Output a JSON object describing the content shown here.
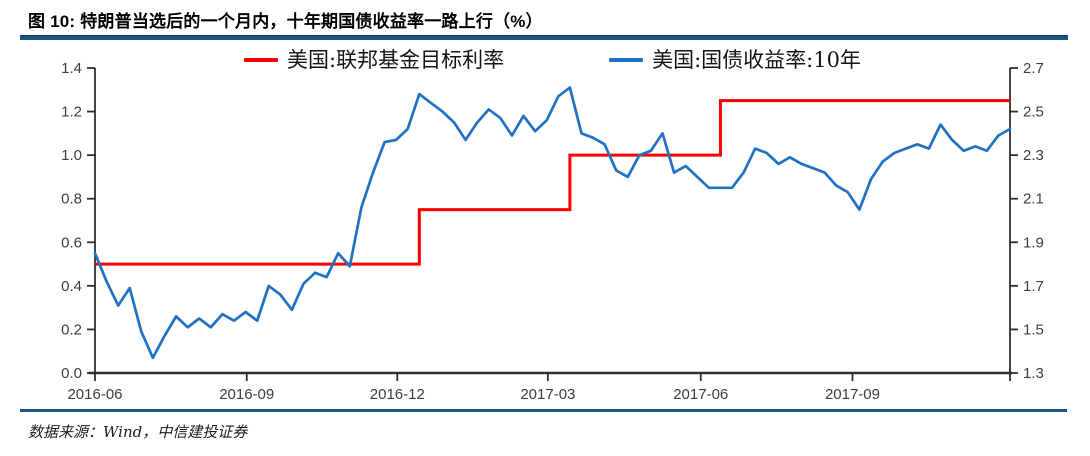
{
  "header": {
    "title": "图 10: 特朗普当选后的一个月内，十年期国债收益率一路上行（%）"
  },
  "footer": {
    "source": "数据来源：Wind，中信建投证券"
  },
  "chart_data": {
    "type": "line",
    "title": "图 10: 特朗普当选后的一个月内，十年期国债收益率一路上行（%）",
    "grid": false,
    "legend_position": "top-center",
    "legend": [
      {
        "name": "美国:联邦基金目标利率",
        "color": "#ff0000"
      },
      {
        "name": "美国:国债收益率:10年",
        "color": "#2171c3"
      }
    ],
    "left_axis": {
      "min": 0.0,
      "max": 1.4,
      "tick_step": 0.2,
      "ticks": [
        "0.0",
        "0.2",
        "0.4",
        "0.6",
        "0.8",
        "1.0",
        "1.2",
        "1.4"
      ]
    },
    "right_axis": {
      "min": 1.3,
      "max": 2.7,
      "tick_step": 0.2,
      "ticks": [
        "1.3",
        "1.5",
        "1.7",
        "1.9",
        "2.1",
        "2.3",
        "2.5",
        "2.7"
      ]
    },
    "x_ticks": [
      {
        "label": "2016-06",
        "week": 0
      },
      {
        "label": "2016-09",
        "week": 13.1
      },
      {
        "label": "2016-12",
        "week": 26.1
      },
      {
        "label": "2017-03",
        "week": 39.1
      },
      {
        "label": "2017-06",
        "week": 52.3
      },
      {
        "label": "2017-09",
        "week": 65.4
      },
      {
        "label": "",
        "week": 79
      }
    ],
    "series": [
      {
        "name": "美国:联邦基金目标利率",
        "axis": "left",
        "type": "step",
        "color": "#ff0000",
        "steps": [
          {
            "week": 0,
            "value": 0.5
          },
          {
            "week": 28,
            "value": 0.75
          },
          {
            "week": 41,
            "value": 1.0
          },
          {
            "week": 54,
            "value": 1.25
          }
        ],
        "end_week": 79
      },
      {
        "name": "美国:国债收益率:10年",
        "axis": "right",
        "type": "line",
        "color": "#2171c3",
        "start_date": "2016-06-01",
        "interval_days": 7,
        "values": [
          1.85,
          1.72,
          1.61,
          1.69,
          1.49,
          1.37,
          1.47,
          1.56,
          1.51,
          1.55,
          1.51,
          1.57,
          1.54,
          1.58,
          1.54,
          1.7,
          1.66,
          1.59,
          1.71,
          1.76,
          1.74,
          1.85,
          1.79,
          2.06,
          2.22,
          2.36,
          2.37,
          2.42,
          2.58,
          2.54,
          2.5,
          2.45,
          2.37,
          2.45,
          2.51,
          2.47,
          2.39,
          2.48,
          2.41,
          2.46,
          2.57,
          2.61,
          2.4,
          2.38,
          2.35,
          2.23,
          2.2,
          2.3,
          2.32,
          2.4,
          2.22,
          2.25,
          2.2,
          2.15,
          2.15,
          2.15,
          2.22,
          2.33,
          2.31,
          2.26,
          2.29,
          2.26,
          2.24,
          2.22,
          2.16,
          2.13,
          2.05,
          2.19,
          2.27,
          2.31,
          2.33,
          2.35,
          2.33,
          2.44,
          2.37,
          2.32,
          2.34,
          2.32,
          2.39,
          2.42
        ]
      }
    ]
  }
}
